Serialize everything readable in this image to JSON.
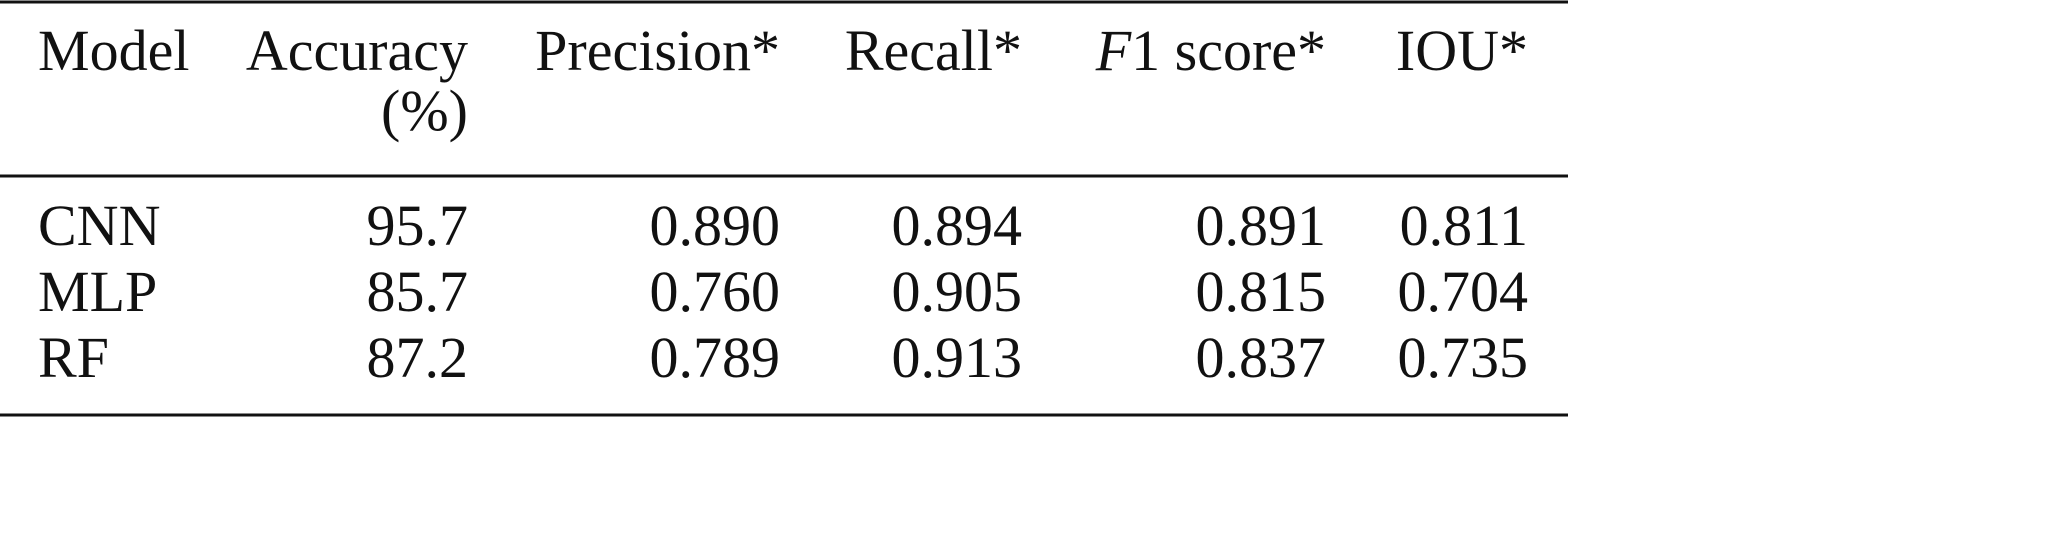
{
  "table": {
    "header": [
      [
        "Model"
      ],
      [
        "Accuracy",
        "(%)"
      ],
      [
        "Precision*"
      ],
      [
        "Recall*"
      ],
      [
        "F1 score*"
      ],
      [
        "IOU*"
      ]
    ],
    "rows": [
      [
        "CNN",
        "95.7",
        "0.890",
        "0.894",
        "0.891",
        "0.811"
      ],
      [
        "MLP",
        "85.7",
        "0.760",
        "0.905",
        "0.815",
        "0.704"
      ],
      [
        "RF",
        "87.2",
        "0.789",
        "0.913",
        "0.837",
        "0.735"
      ]
    ]
  }
}
